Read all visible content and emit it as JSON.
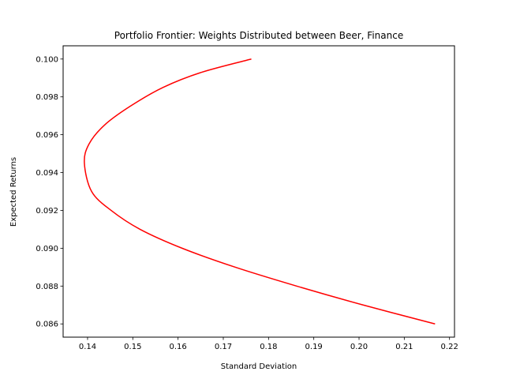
{
  "chart_data": {
    "type": "line",
    "title": "Portfolio Frontier: Weights Distributed between Beer, Finance",
    "xlabel": "Standard Deviation",
    "ylabel": "Expected Returns",
    "xlim": [
      0.1346,
      0.2211
    ],
    "ylim": [
      0.0853,
      0.1007
    ],
    "xticks": [
      0.14,
      0.15,
      0.16,
      0.17,
      0.18,
      0.19,
      0.2,
      0.21,
      0.22
    ],
    "xtick_labels": [
      "0.14",
      "0.15",
      "0.16",
      "0.17",
      "0.18",
      "0.19",
      "0.20",
      "0.21",
      "0.22"
    ],
    "yticks": [
      0.086,
      0.088,
      0.09,
      0.092,
      0.094,
      0.096,
      0.098,
      0.1
    ],
    "ytick_labels": [
      "0.086",
      "0.088",
      "0.090",
      "0.092",
      "0.094",
      "0.096",
      "0.098",
      "0.100"
    ],
    "grid": false,
    "legend": "none",
    "series": [
      {
        "color": "#ff0000",
        "x": [
          0.2168,
          0.2009,
          0.1862,
          0.1726,
          0.1609,
          0.1516,
          0.1452,
          0.1409,
          0.1393,
          0.1403,
          0.1437,
          0.1494,
          0.1567,
          0.1652,
          0.1762
        ],
        "y": [
          0.086,
          0.087,
          0.088,
          0.089,
          0.09,
          0.091,
          0.092,
          0.093,
          0.0945,
          0.0955,
          0.0965,
          0.0975,
          0.0985,
          0.0993,
          0.1
        ]
      }
    ]
  }
}
